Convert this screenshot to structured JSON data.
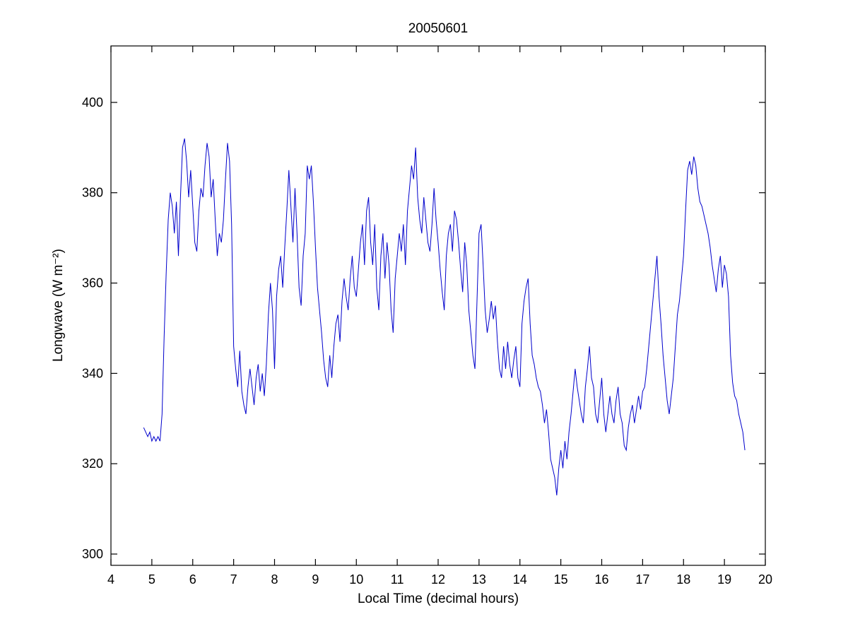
{
  "figure": {
    "title": "20050601",
    "xlabel": "Local Time (decimal hours)",
    "ylabel": "Longwave (W m⁻²)"
  },
  "chart_data": {
    "type": "line",
    "title": "20050601",
    "xlabel": "Local Time (decimal hours)",
    "ylabel": "Longwave (W m⁻²)",
    "line_color": "#0000CC",
    "axis_color": "#000000",
    "background_color": "#FFFFFF",
    "grid": false,
    "legend": null,
    "xlim": [
      4,
      20
    ],
    "ylim": [
      297.5,
      412.5
    ],
    "xticks": [
      4,
      5,
      6,
      7,
      8,
      9,
      10,
      11,
      12,
      13,
      14,
      15,
      16,
      17,
      18,
      19,
      20
    ],
    "yticks": [
      300,
      320,
      340,
      360,
      380,
      400
    ],
    "series": [
      {
        "name": "longwave",
        "x_start": 4.8,
        "x_step": 0.05,
        "y": [
          328,
          327,
          326,
          327,
          325,
          326,
          325,
          326,
          325,
          331,
          348,
          362,
          374,
          380,
          377,
          371,
          378,
          366,
          379,
          390,
          392,
          387,
          379,
          385,
          377,
          369,
          367,
          376,
          381,
          379,
          386,
          391,
          388,
          379,
          383,
          374,
          366,
          371,
          369,
          374,
          383,
          391,
          387,
          373,
          346,
          341,
          337,
          345,
          336,
          333,
          331,
          337,
          341,
          337,
          333,
          339,
          342,
          336,
          340,
          335,
          342,
          353,
          360,
          354,
          341,
          357,
          363,
          366,
          359,
          368,
          376,
          385,
          377,
          369,
          381,
          371,
          359,
          355,
          366,
          371,
          386,
          383,
          386,
          378,
          368,
          359,
          354,
          349,
          343,
          339,
          337,
          344,
          339,
          346,
          351,
          353,
          347,
          356,
          361,
          357,
          354,
          361,
          366,
          359,
          357,
          363,
          369,
          373,
          364,
          376,
          379,
          369,
          364,
          373,
          359,
          354,
          366,
          371,
          361,
          369,
          364,
          354,
          349,
          361,
          366,
          371,
          367,
          373,
          364,
          376,
          381,
          386,
          383,
          390,
          379,
          374,
          371,
          379,
          374,
          369,
          367,
          373,
          381,
          374,
          369,
          363,
          358,
          354,
          366,
          371,
          373,
          367,
          376,
          374,
          369,
          363,
          358,
          369,
          364,
          354,
          349,
          344,
          341,
          356,
          371,
          373,
          364,
          354,
          349,
          352,
          356,
          352,
          355,
          347,
          341,
          339,
          346,
          341,
          347,
          342,
          339,
          343,
          346,
          339,
          337,
          351,
          356,
          359,
          361,
          351,
          344,
          342,
          339,
          337,
          336,
          333,
          329,
          332,
          327,
          321,
          319,
          317,
          313,
          319,
          323,
          319,
          325,
          321,
          327,
          331,
          336,
          341,
          337,
          334,
          331,
          329,
          337,
          341,
          346,
          339,
          337,
          331,
          329,
          334,
          339,
          331,
          327,
          331,
          335,
          331,
          329,
          334,
          337,
          331,
          329,
          324,
          323,
          328,
          331,
          333,
          329,
          332,
          335,
          332,
          336,
          337,
          341,
          346,
          351,
          356,
          361,
          366,
          357,
          351,
          344,
          339,
          334,
          331,
          335,
          339,
          346,
          353,
          356,
          361,
          366,
          376,
          385,
          387,
          384,
          388,
          386,
          381,
          378,
          377,
          375,
          373,
          371,
          368,
          364,
          361,
          358,
          363,
          366,
          359,
          364,
          362,
          357,
          344,
          338,
          335,
          334,
          331,
          329,
          327,
          323
        ]
      }
    ]
  }
}
